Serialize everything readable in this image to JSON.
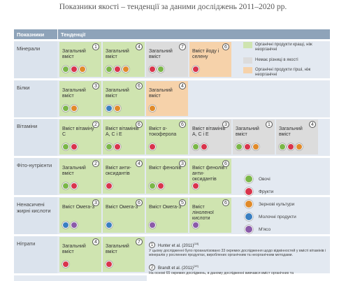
{
  "title": "Показники якості – тенденції за даними досліджень 2011–2020 рр.",
  "header": {
    "indicators": "Показники",
    "trends": "Тенденції"
  },
  "rows": [
    {
      "label": "Мінерали",
      "cells": [
        {
          "text": "Загальний вміст",
          "ref": 1,
          "color": "#cfe4b0"
        },
        {
          "text": "Загальний вміст",
          "ref": 4,
          "color": "#cfe4b0"
        },
        {
          "text": "Загальний вміст",
          "ref": 7,
          "color": "#dcdcdc"
        },
        {
          "text": "Вміст йоду і селену",
          "ref": 6,
          "color": "#f6d2aa"
        }
      ]
    },
    {
      "label": "Білки",
      "cells": [
        {
          "text": "Загальний вміст",
          "ref": 3,
          "color": "#cfe4b0"
        },
        {
          "text": "Загальний вміст",
          "ref": 6,
          "color": "#cfe4b0"
        },
        {
          "text": "Загальний вміст",
          "ref": 4,
          "color": "#f6d2aa"
        }
      ]
    },
    {
      "label": "Вітаміни",
      "cells": [
        {
          "text": "Вміст вітаміну С",
          "ref": 2,
          "color": "#cfe4b0"
        },
        {
          "text": "Вміст вітамінів А, С і Е",
          "ref": 6,
          "color": "#cfe4b0"
        },
        {
          "text": "Вміст α-токоферола",
          "ref": 6,
          "color": "#cfe4b0"
        },
        {
          "text": "Вміст вітамінів А, С і Е",
          "ref": 3,
          "color": "#dcdcdc"
        },
        {
          "text": "Загальний вміст",
          "ref": 1,
          "color": "#dcdcdc"
        },
        {
          "text": "Загальний вміст",
          "ref": 4,
          "color": "#dcdcdc"
        }
      ]
    },
    {
      "label": "Фіто-нутрієнти",
      "cells": [
        {
          "text": "Загальний вміст",
          "ref": 2,
          "color": "#cfe4b0"
        },
        {
          "text": "Вміст анти-оксидантів",
          "ref": 4,
          "color": "#cfe4b0"
        },
        {
          "text": "Вміст фенолів",
          "ref": 3,
          "color": "#cfe4b0"
        },
        {
          "text": "Вміст фенолів і анти-оксидантів",
          "ref": 6,
          "color": "#cfe4b0"
        }
      ]
    },
    {
      "label": "Ненасичені жирні кислоти",
      "cells": [
        {
          "text": "Вміст Омега-3",
          "ref": 3,
          "color": "#cfe4b0"
        },
        {
          "text": "Вміст Омега-3",
          "ref": 6,
          "color": "#cfe4b0"
        },
        {
          "text": "Вміст Омега-3",
          "ref": 5,
          "color": "#cfe4b0"
        },
        {
          "text": "Вміст ліноленої кислоти",
          "ref": 6,
          "color": "#cfe4b0"
        }
      ]
    },
    {
      "label": "Нітрати",
      "cells": [
        {
          "text": "Загальний вміст",
          "ref": 4,
          "color": "#cfe4b0"
        },
        {
          "text": "Загальний вміст",
          "ref": 7,
          "color": "#cfe4b0"
        }
      ]
    }
  ],
  "legend": {
    "colors": [
      {
        "text": "Органічні продукти кращі, ніж неорганічні",
        "color": "#cfe4b0"
      },
      {
        "text": "Немає різниці в якості",
        "color": "#dcdcdc"
      },
      {
        "text": "Органічні продукти гірші, ніж неорганічні",
        "color": "#f6d2aa"
      }
    ],
    "products": [
      {
        "text": "Овочі",
        "color": "#7ab648"
      },
      {
        "text": "Фрукти",
        "color": "#d8344c"
      },
      {
        "text": "Зернові культури",
        "color": "#e08a2a"
      },
      {
        "text": "Молочні продукти",
        "color": "#3a7fc1"
      },
      {
        "text": "М'ясо",
        "color": "#8a5aa8"
      }
    ]
  },
  "footnotes": [
    {
      "ref": 1,
      "author": "Hunter et al. (2011)",
      "sup": "[18]",
      "text": "У цьому дослідженні було проаналізовано 33 окремих дослідження щодо відмінностей у вмісті вітамінів і мінералів у рослинних продуктах, вироблених органічним та неорганічним методами."
    },
    {
      "ref": 2,
      "author": "Brandt et al. (2011)",
      "sup": "[19]",
      "text": "На основі 65 окремих досліджень, в даному дослідженні вивчався вміст органічних та"
    }
  ]
}
